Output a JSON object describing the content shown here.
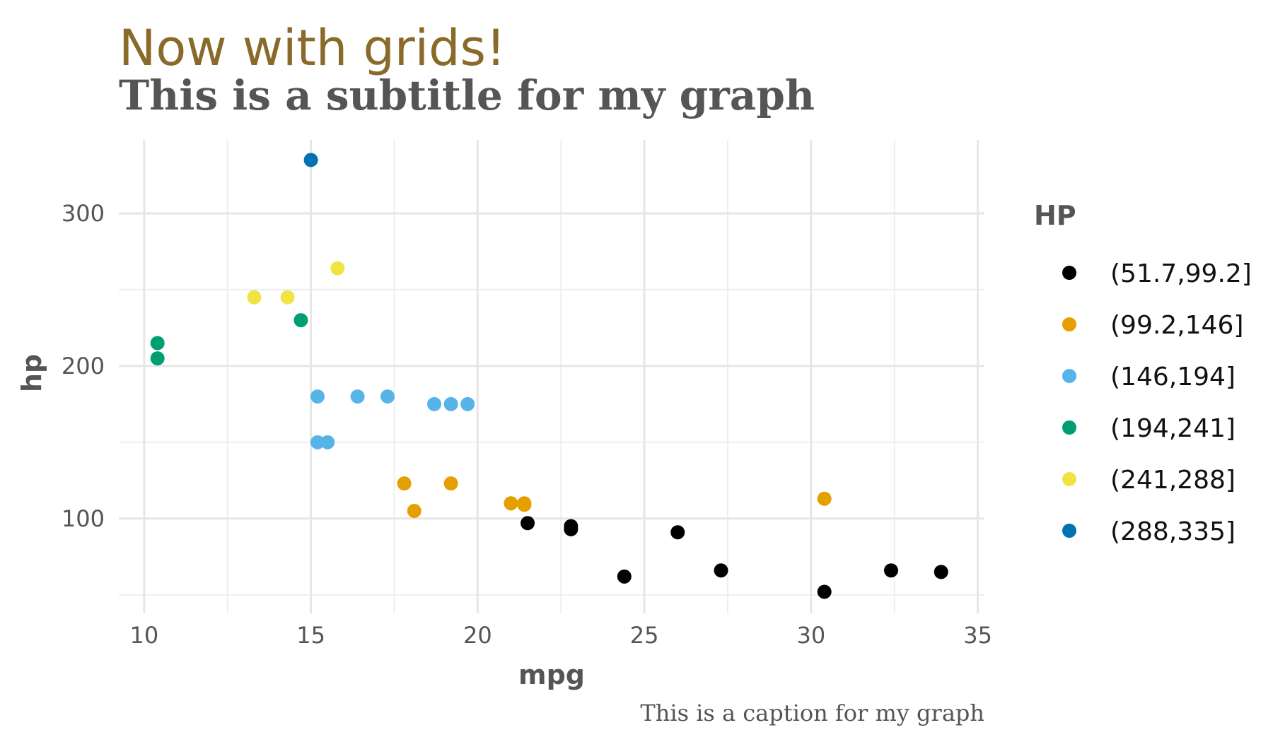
{
  "colors": {
    "title": "#8a6a2a",
    "subtitle": "#555555",
    "caption": "#555555",
    "grid_major": "#e6e6e6",
    "grid_minor": "#eeeeee"
  },
  "chart_data": {
    "type": "scatter",
    "title": "Now with grids!",
    "subtitle": "This is a subtitle for my graph",
    "caption": "This is a caption for my graph",
    "xlabel": "mpg",
    "ylabel": "hp",
    "xlim": [
      9.24,
      35.2
    ],
    "ylim": [
      37.85,
      348.15
    ],
    "x_ticks": [
      10,
      15,
      20,
      25,
      30,
      35
    ],
    "y_ticks": [
      100,
      200,
      300
    ],
    "grid": true,
    "legend": {
      "title": "HP",
      "placement": "right"
    },
    "series": [
      {
        "name": "(51.7,99.2]",
        "color": "#000000",
        "points": [
          [
            21.5,
            97
          ],
          [
            22.8,
            93
          ],
          [
            22.8,
            95
          ],
          [
            24.4,
            62
          ],
          [
            26.0,
            91
          ],
          [
            27.3,
            66
          ],
          [
            30.4,
            52
          ],
          [
            32.4,
            66
          ],
          [
            33.9,
            65
          ]
        ]
      },
      {
        "name": "(99.2,146]",
        "color": "#E69F00",
        "points": [
          [
            17.8,
            123
          ],
          [
            18.1,
            105
          ],
          [
            19.2,
            123
          ],
          [
            21.0,
            110
          ],
          [
            21.0,
            110
          ],
          [
            21.4,
            109
          ],
          [
            21.4,
            110
          ],
          [
            30.4,
            113
          ]
        ]
      },
      {
        "name": "(146,194]",
        "color": "#56B4E9",
        "points": [
          [
            15.2,
            150
          ],
          [
            15.5,
            150
          ],
          [
            15.2,
            180
          ],
          [
            16.4,
            180
          ],
          [
            17.3,
            180
          ],
          [
            18.7,
            175
          ],
          [
            19.2,
            175
          ],
          [
            19.7,
            175
          ]
        ]
      },
      {
        "name": "(194,241]",
        "color": "#009E73",
        "points": [
          [
            10.4,
            205
          ],
          [
            10.4,
            215
          ],
          [
            14.7,
            230
          ]
        ]
      },
      {
        "name": "(241,288]",
        "color": "#F0E442",
        "points": [
          [
            13.3,
            245
          ],
          [
            14.3,
            245
          ],
          [
            15.8,
            264
          ]
        ]
      },
      {
        "name": "(288,335]",
        "color": "#0072B2",
        "points": [
          [
            15.0,
            335
          ]
        ]
      }
    ]
  }
}
